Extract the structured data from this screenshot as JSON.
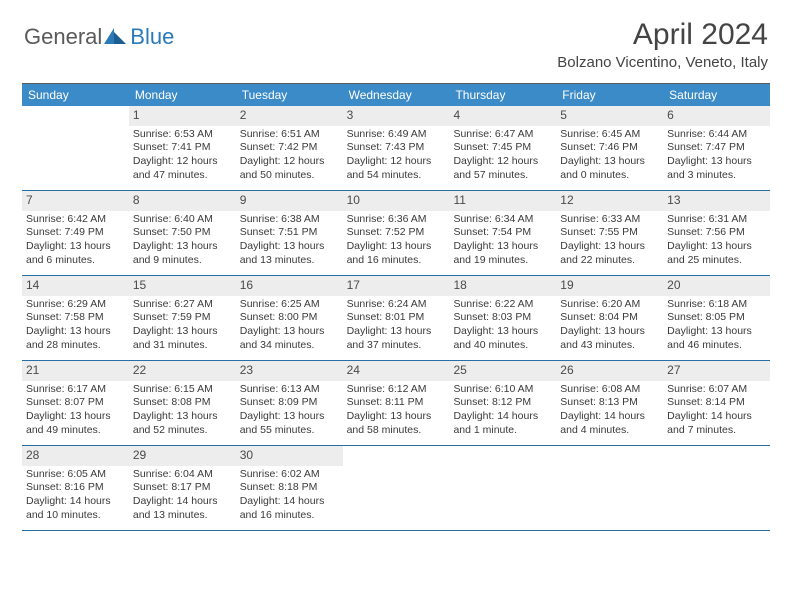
{
  "brand": {
    "general": "General",
    "blue": "Blue"
  },
  "title": "April 2024",
  "location": "Bolzano Vicentino, Veneto, Italy",
  "colors": {
    "header_bg": "#3b8bc8",
    "row_divider": "#2a6fa3",
    "daynum_bg": "#ededed",
    "text": "#3a3a3a",
    "title_color": "#444444"
  },
  "days_of_week": [
    "Sunday",
    "Monday",
    "Tuesday",
    "Wednesday",
    "Thursday",
    "Friday",
    "Saturday"
  ],
  "weeks": [
    [
      {
        "num": "",
        "lines": []
      },
      {
        "num": "1",
        "lines": [
          "Sunrise: 6:53 AM",
          "Sunset: 7:41 PM",
          "Daylight: 12 hours",
          "and 47 minutes."
        ]
      },
      {
        "num": "2",
        "lines": [
          "Sunrise: 6:51 AM",
          "Sunset: 7:42 PM",
          "Daylight: 12 hours",
          "and 50 minutes."
        ]
      },
      {
        "num": "3",
        "lines": [
          "Sunrise: 6:49 AM",
          "Sunset: 7:43 PM",
          "Daylight: 12 hours",
          "and 54 minutes."
        ]
      },
      {
        "num": "4",
        "lines": [
          "Sunrise: 6:47 AM",
          "Sunset: 7:45 PM",
          "Daylight: 12 hours",
          "and 57 minutes."
        ]
      },
      {
        "num": "5",
        "lines": [
          "Sunrise: 6:45 AM",
          "Sunset: 7:46 PM",
          "Daylight: 13 hours",
          "and 0 minutes."
        ]
      },
      {
        "num": "6",
        "lines": [
          "Sunrise: 6:44 AM",
          "Sunset: 7:47 PM",
          "Daylight: 13 hours",
          "and 3 minutes."
        ]
      }
    ],
    [
      {
        "num": "7",
        "lines": [
          "Sunrise: 6:42 AM",
          "Sunset: 7:49 PM",
          "Daylight: 13 hours",
          "and 6 minutes."
        ]
      },
      {
        "num": "8",
        "lines": [
          "Sunrise: 6:40 AM",
          "Sunset: 7:50 PM",
          "Daylight: 13 hours",
          "and 9 minutes."
        ]
      },
      {
        "num": "9",
        "lines": [
          "Sunrise: 6:38 AM",
          "Sunset: 7:51 PM",
          "Daylight: 13 hours",
          "and 13 minutes."
        ]
      },
      {
        "num": "10",
        "lines": [
          "Sunrise: 6:36 AM",
          "Sunset: 7:52 PM",
          "Daylight: 13 hours",
          "and 16 minutes."
        ]
      },
      {
        "num": "11",
        "lines": [
          "Sunrise: 6:34 AM",
          "Sunset: 7:54 PM",
          "Daylight: 13 hours",
          "and 19 minutes."
        ]
      },
      {
        "num": "12",
        "lines": [
          "Sunrise: 6:33 AM",
          "Sunset: 7:55 PM",
          "Daylight: 13 hours",
          "and 22 minutes."
        ]
      },
      {
        "num": "13",
        "lines": [
          "Sunrise: 6:31 AM",
          "Sunset: 7:56 PM",
          "Daylight: 13 hours",
          "and 25 minutes."
        ]
      }
    ],
    [
      {
        "num": "14",
        "lines": [
          "Sunrise: 6:29 AM",
          "Sunset: 7:58 PM",
          "Daylight: 13 hours",
          "and 28 minutes."
        ]
      },
      {
        "num": "15",
        "lines": [
          "Sunrise: 6:27 AM",
          "Sunset: 7:59 PM",
          "Daylight: 13 hours",
          "and 31 minutes."
        ]
      },
      {
        "num": "16",
        "lines": [
          "Sunrise: 6:25 AM",
          "Sunset: 8:00 PM",
          "Daylight: 13 hours",
          "and 34 minutes."
        ]
      },
      {
        "num": "17",
        "lines": [
          "Sunrise: 6:24 AM",
          "Sunset: 8:01 PM",
          "Daylight: 13 hours",
          "and 37 minutes."
        ]
      },
      {
        "num": "18",
        "lines": [
          "Sunrise: 6:22 AM",
          "Sunset: 8:03 PM",
          "Daylight: 13 hours",
          "and 40 minutes."
        ]
      },
      {
        "num": "19",
        "lines": [
          "Sunrise: 6:20 AM",
          "Sunset: 8:04 PM",
          "Daylight: 13 hours",
          "and 43 minutes."
        ]
      },
      {
        "num": "20",
        "lines": [
          "Sunrise: 6:18 AM",
          "Sunset: 8:05 PM",
          "Daylight: 13 hours",
          "and 46 minutes."
        ]
      }
    ],
    [
      {
        "num": "21",
        "lines": [
          "Sunrise: 6:17 AM",
          "Sunset: 8:07 PM",
          "Daylight: 13 hours",
          "and 49 minutes."
        ]
      },
      {
        "num": "22",
        "lines": [
          "Sunrise: 6:15 AM",
          "Sunset: 8:08 PM",
          "Daylight: 13 hours",
          "and 52 minutes."
        ]
      },
      {
        "num": "23",
        "lines": [
          "Sunrise: 6:13 AM",
          "Sunset: 8:09 PM",
          "Daylight: 13 hours",
          "and 55 minutes."
        ]
      },
      {
        "num": "24",
        "lines": [
          "Sunrise: 6:12 AM",
          "Sunset: 8:11 PM",
          "Daylight: 13 hours",
          "and 58 minutes."
        ]
      },
      {
        "num": "25",
        "lines": [
          "Sunrise: 6:10 AM",
          "Sunset: 8:12 PM",
          "Daylight: 14 hours",
          "and 1 minute."
        ]
      },
      {
        "num": "26",
        "lines": [
          "Sunrise: 6:08 AM",
          "Sunset: 8:13 PM",
          "Daylight: 14 hours",
          "and 4 minutes."
        ]
      },
      {
        "num": "27",
        "lines": [
          "Sunrise: 6:07 AM",
          "Sunset: 8:14 PM",
          "Daylight: 14 hours",
          "and 7 minutes."
        ]
      }
    ],
    [
      {
        "num": "28",
        "lines": [
          "Sunrise: 6:05 AM",
          "Sunset: 8:16 PM",
          "Daylight: 14 hours",
          "and 10 minutes."
        ]
      },
      {
        "num": "29",
        "lines": [
          "Sunrise: 6:04 AM",
          "Sunset: 8:17 PM",
          "Daylight: 14 hours",
          "and 13 minutes."
        ]
      },
      {
        "num": "30",
        "lines": [
          "Sunrise: 6:02 AM",
          "Sunset: 8:18 PM",
          "Daylight: 14 hours",
          "and 16 minutes."
        ]
      },
      {
        "num": "",
        "lines": []
      },
      {
        "num": "",
        "lines": []
      },
      {
        "num": "",
        "lines": []
      },
      {
        "num": "",
        "lines": []
      }
    ]
  ]
}
